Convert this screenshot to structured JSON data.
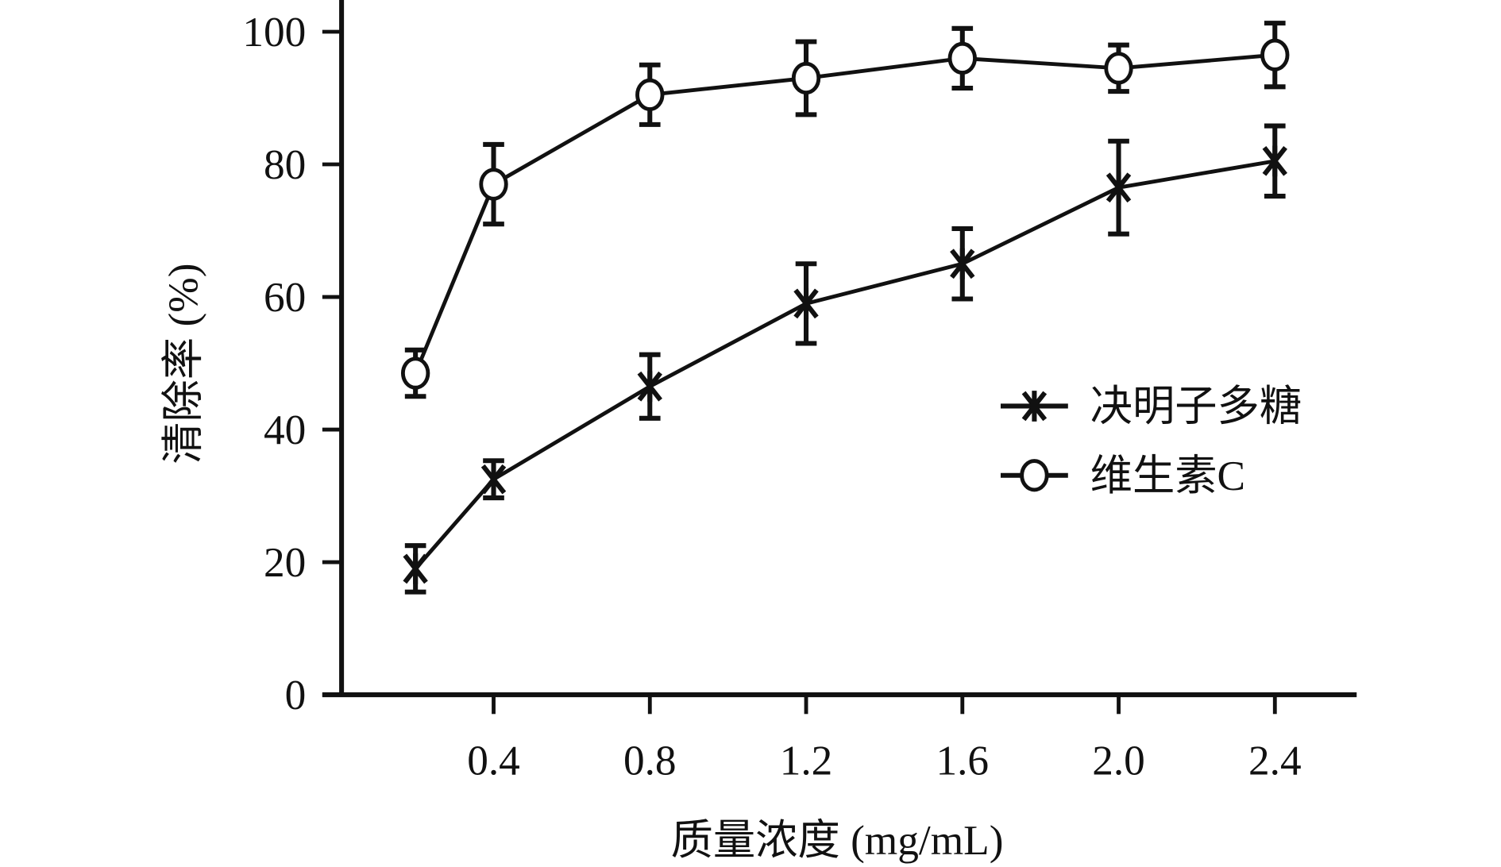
{
  "chart_data": {
    "type": "line",
    "title": "",
    "xlabel": "质量浓度 (mg/mL)",
    "ylabel": "清除率 (%)",
    "xlim": [
      0,
      2.6
    ],
    "ylim": [
      0,
      100
    ],
    "xticks": [
      0.4,
      0.8,
      1.2,
      1.6,
      2.0,
      2.4
    ],
    "xtick_labels": [
      "0.4",
      "0.8",
      "1.2",
      "1.6",
      "2.0",
      "2.4"
    ],
    "yticks": [
      0,
      20,
      40,
      60,
      80,
      100
    ],
    "ytick_labels": [
      "0",
      "20",
      "40",
      "60",
      "80",
      "100"
    ],
    "grid": false,
    "legend_position": "center-right",
    "x": [
      0.2,
      0.4,
      0.8,
      1.2,
      1.6,
      2.0,
      2.4
    ],
    "series": [
      {
        "name": "决明子多糖",
        "marker": "x",
        "values": [
          19,
          32.5,
          46.5,
          59,
          65,
          76.5,
          80.5
        ],
        "errors": [
          3.5,
          2.8,
          4.8,
          6,
          5.3,
          7,
          5.3
        ]
      },
      {
        "name": "维生素C",
        "marker": "o",
        "values": [
          48.5,
          77,
          90.5,
          93,
          96,
          94.5,
          96.5
        ],
        "errors": [
          3.5,
          6,
          4.5,
          5.5,
          4.5,
          3.5,
          4.8
        ]
      }
    ]
  }
}
